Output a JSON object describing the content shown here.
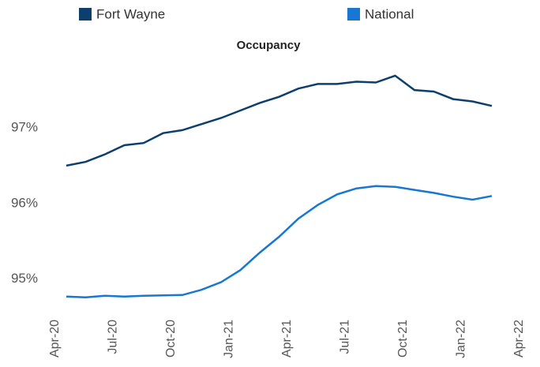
{
  "chart_data": {
    "type": "line",
    "title": "Occupancy",
    "categories": [
      "Apr-20",
      null,
      null,
      "Jul-20",
      null,
      null,
      "Oct-20",
      null,
      null,
      "Jan-21",
      null,
      null,
      "Apr-21",
      null,
      null,
      "Jul-21",
      null,
      null,
      "Oct-21",
      null,
      null,
      "Jan-22",
      null,
      null,
      "Apr-22"
    ],
    "series": [
      {
        "name": "Fort Wayne",
        "color": "#0d3f6e",
        "values": [
          96.5,
          96.55,
          96.65,
          96.77,
          96.8,
          96.93,
          96.97,
          97.05,
          97.13,
          97.23,
          97.33,
          97.41,
          97.52,
          97.58,
          97.58,
          97.61,
          97.6,
          97.69,
          97.5,
          97.48,
          97.38,
          97.35,
          97.29,
          null,
          null
        ]
      },
      {
        "name": "National",
        "color": "#1877d2",
        "values": [
          94.77,
          94.76,
          94.78,
          94.77,
          94.78,
          94.785,
          94.79,
          94.86,
          94.96,
          95.12,
          95.35,
          95.56,
          95.8,
          95.98,
          96.12,
          96.2,
          96.23,
          96.22,
          96.18,
          96.14,
          96.09,
          96.05,
          96.1,
          null,
          null
        ]
      }
    ],
    "ylim": [
      94.6,
      98.2
    ],
    "yticks": [
      {
        "value": 95,
        "label": "95%"
      },
      {
        "value": 96,
        "label": "96%"
      },
      {
        "value": 97,
        "label": "97%"
      }
    ],
    "legend": "top"
  }
}
